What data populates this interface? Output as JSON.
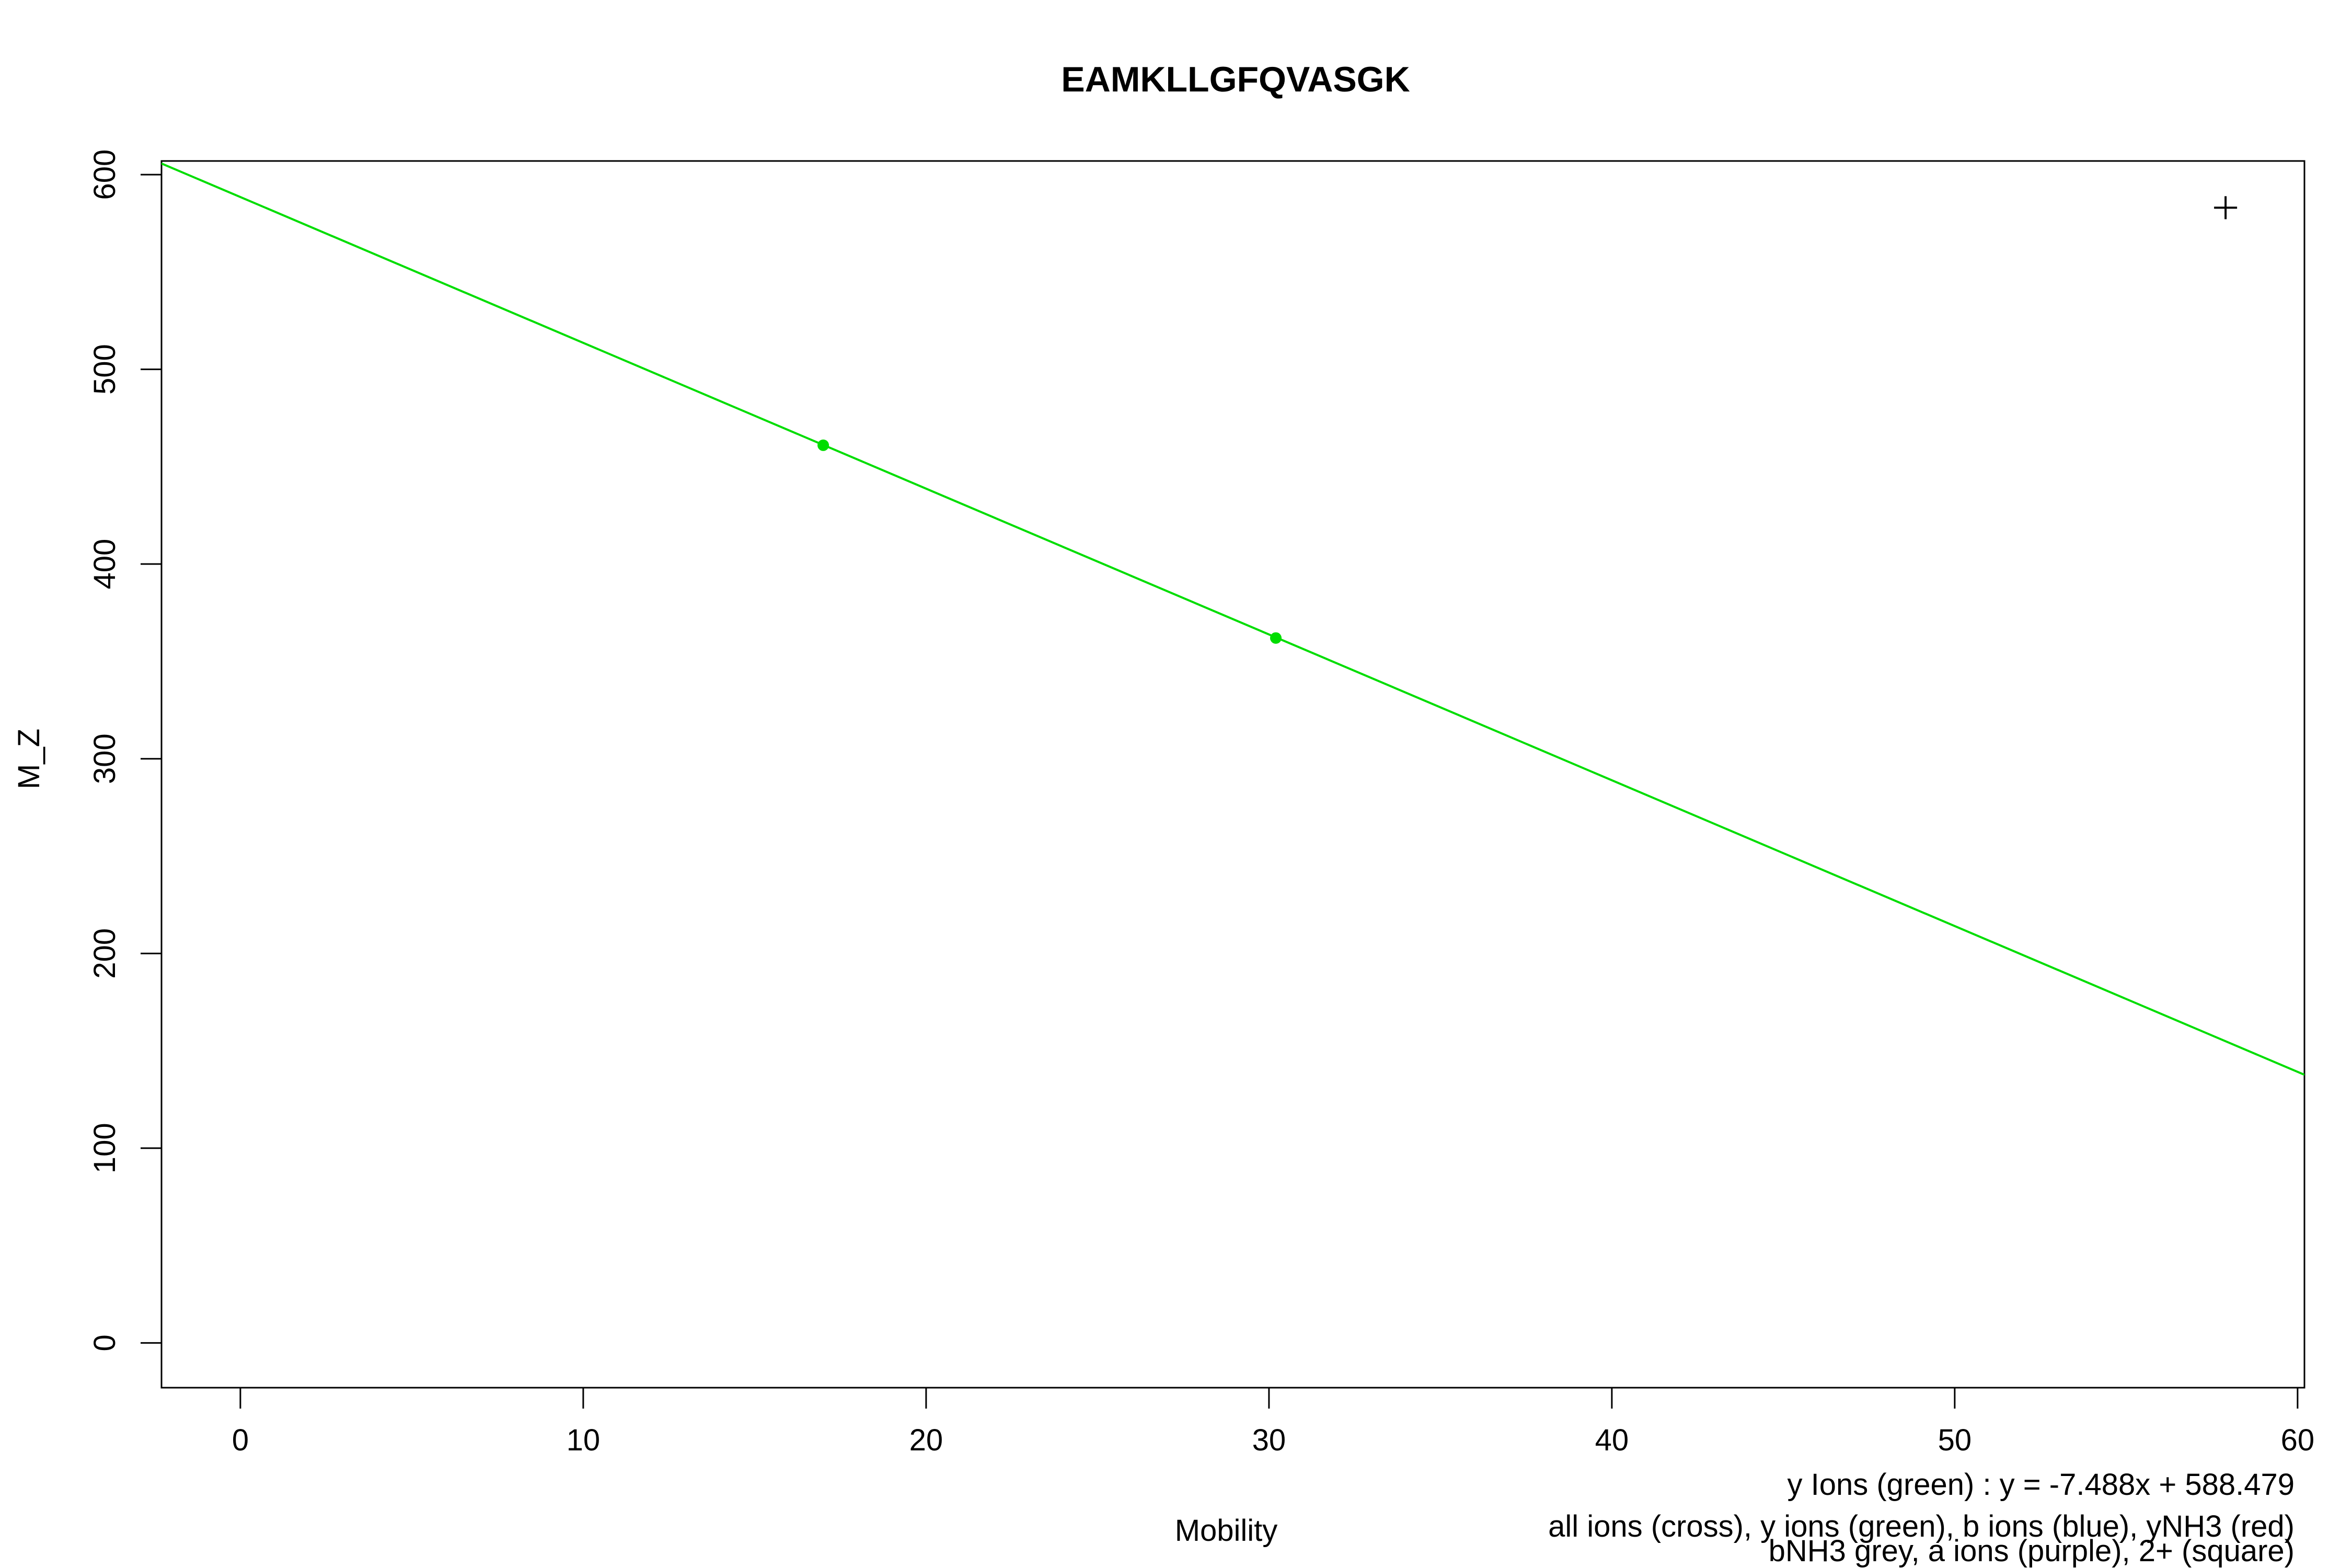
{
  "chart_data": {
    "type": "scatter",
    "title": "EAMKLLGFQVASGK",
    "xlabel": "Mobility",
    "ylabel": "M_Z",
    "xlim": [
      -2.3,
      60.2
    ],
    "ylim": [
      -23,
      607
    ],
    "xticks": [
      0,
      10,
      20,
      30,
      40,
      50,
      60
    ],
    "yticks": [
      0,
      100,
      200,
      300,
      400,
      500,
      600
    ],
    "grid": false,
    "series": [
      {
        "name": "all ions (cross)",
        "marker": "cross",
        "color": "#000000",
        "points": [
          {
            "x": 57.9,
            "y": 583
          }
        ]
      },
      {
        "name": "y ions (green)",
        "marker": "dot",
        "color": "#00dd00",
        "points": [
          {
            "x": 17.0,
            "y": 461
          },
          {
            "x": 30.2,
            "y": 362
          }
        ]
      }
    ],
    "fit_lines": [
      {
        "series": "y ions (green)",
        "slope": -7.488,
        "intercept": 588.479,
        "color": "#00dd00"
      }
    ],
    "annotations": [
      "y Ions (green) : y = -7.488x + 588.479",
      "all ions (cross), y ions (green), b ions (blue), yNH3 (red)",
      "bNH3 grey, a ions (purple), 2+ (square)"
    ]
  }
}
